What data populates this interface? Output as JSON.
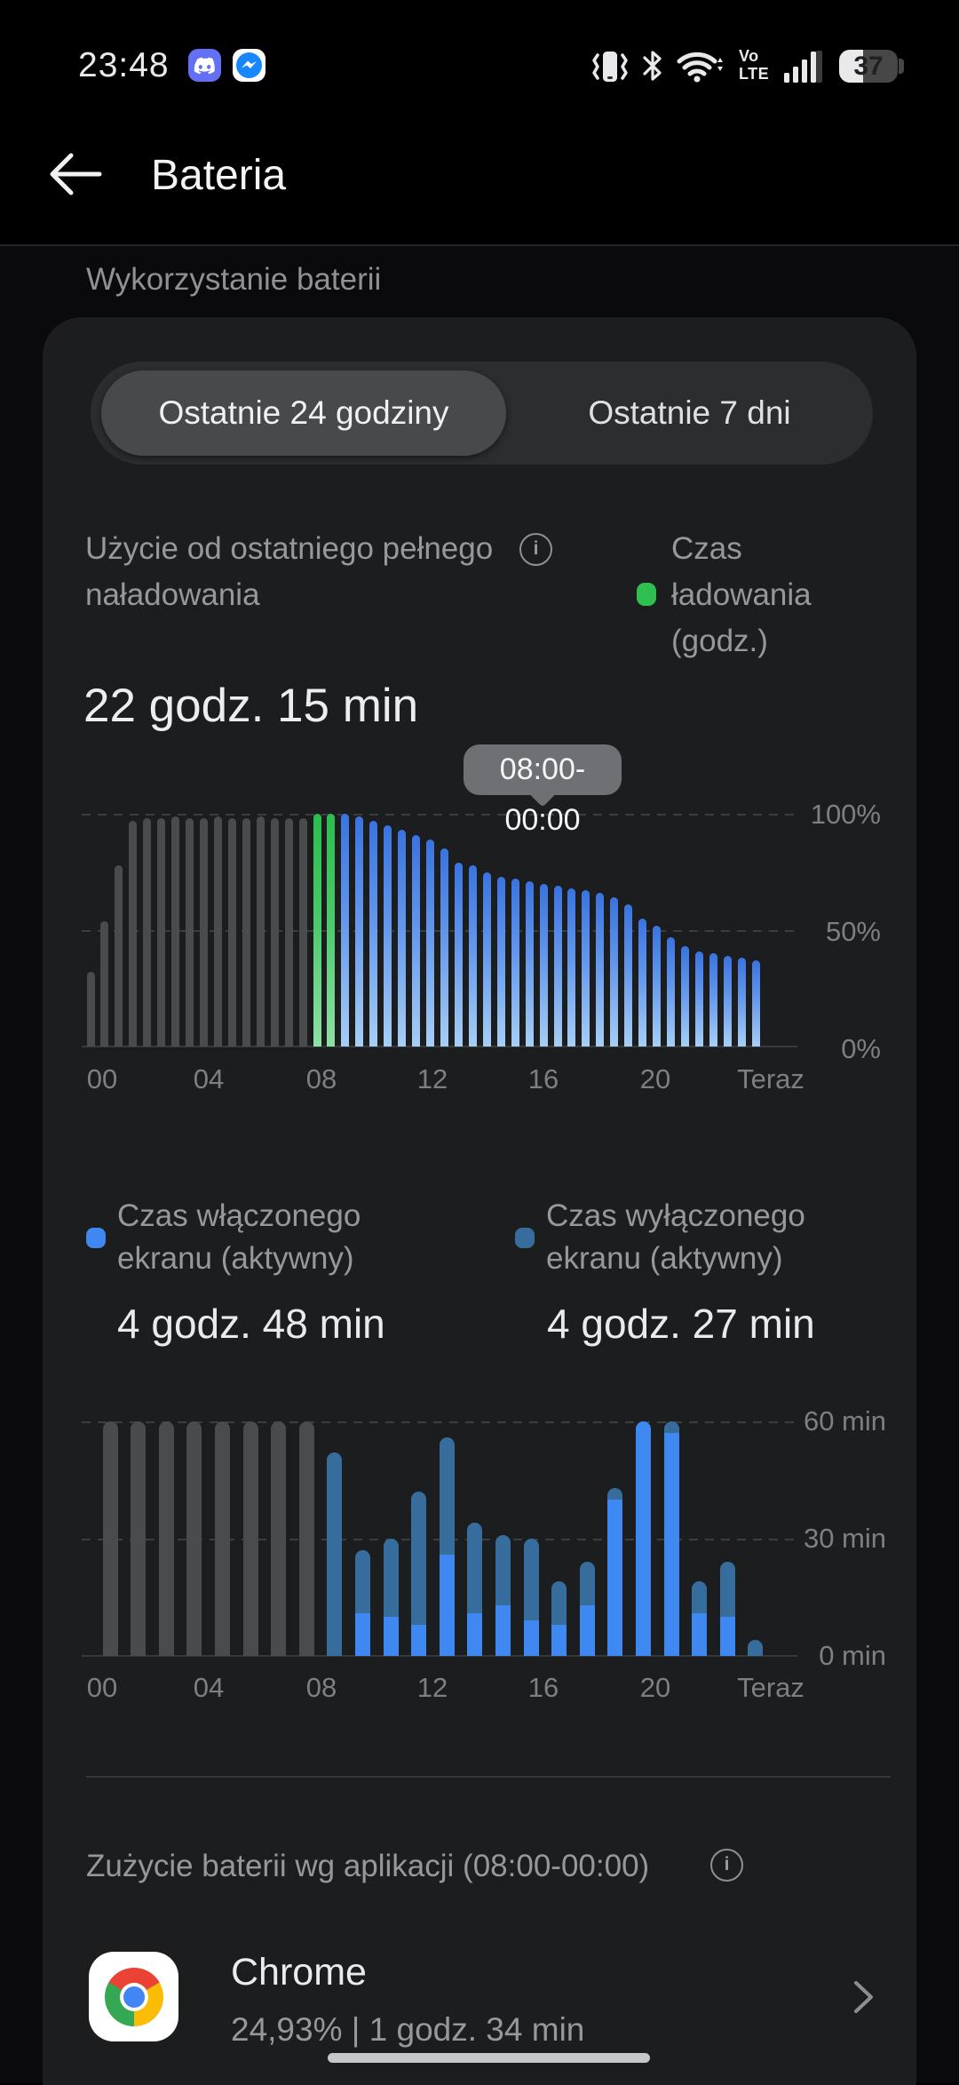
{
  "status_bar": {
    "time": "23:48",
    "battery_level": "37",
    "volte_top": "Vo",
    "volte_bottom": "LTE"
  },
  "header": {
    "title": "Bateria",
    "section": "Wykorzystanie baterii"
  },
  "tabs": [
    {
      "label": "Ostatnie 24 godziny",
      "selected": true
    },
    {
      "label": "Ostatnie 7 dni",
      "selected": false
    }
  ],
  "usage": {
    "label_line1": "Użycie od ostatniego pełnego",
    "label_line2": "naładowania",
    "value": "22 godz. 15 min"
  },
  "charge_legend": {
    "line1": "Czas",
    "line2": "ładowania",
    "line3": "(godz.)",
    "color": "#2fbf50"
  },
  "tooltip": "08:00-00:00",
  "screen_legend": [
    {
      "label_line1": "Czas włączonego",
      "label_line2": "ekranu (aktywny)",
      "value": "4 godz. 48 min",
      "color": "#3f87f1"
    },
    {
      "label_line1": "Czas wyłączonego",
      "label_line2": "ekranu (aktywny)",
      "value": "4 godz. 27 min",
      "color": "#366d9c"
    }
  ],
  "apps_section": {
    "title": "Zużycie baterii wg aplikacji (08:00-00:00)"
  },
  "apps": [
    {
      "name": "Chrome",
      "detail": "24,93%  |  1 godz. 34 min"
    }
  ],
  "chart_data": [
    {
      "type": "bar",
      "name": "battery-level-last-24h",
      "unit": "%",
      "ylim": [
        0,
        100
      ],
      "y_ticks": [
        "100%",
        "50%",
        "0%"
      ],
      "x_labels": [
        "00",
        "04",
        "08",
        "12",
        "16",
        "20",
        "Teraz"
      ],
      "annotation": "08:00-00:00",
      "legend_green": "Czas ładowania (godz.)",
      "colors": {
        "gray": "#4a4b4d",
        "green": "#2fbf50",
        "blue": "#3f7ce5"
      },
      "bars": [
        {
          "v": 32,
          "c": "gray"
        },
        {
          "v": 54,
          "c": "gray"
        },
        {
          "v": 78,
          "c": "gray"
        },
        {
          "v": 97,
          "c": "gray"
        },
        {
          "v": 98,
          "c": "gray"
        },
        {
          "v": 98,
          "c": "gray"
        },
        {
          "v": 99,
          "c": "gray"
        },
        {
          "v": 98,
          "c": "gray"
        },
        {
          "v": 98,
          "c": "gray"
        },
        {
          "v": 99,
          "c": "gray"
        },
        {
          "v": 98,
          "c": "gray"
        },
        {
          "v": 98,
          "c": "gray"
        },
        {
          "v": 99,
          "c": "gray"
        },
        {
          "v": 98,
          "c": "gray"
        },
        {
          "v": 98,
          "c": "gray"
        },
        {
          "v": 98,
          "c": "gray"
        },
        {
          "v": 100,
          "c": "green"
        },
        {
          "v": 100,
          "c": "green"
        },
        {
          "v": 100,
          "c": "blue"
        },
        {
          "v": 99,
          "c": "blue"
        },
        {
          "v": 97,
          "c": "blue"
        },
        {
          "v": 95,
          "c": "blue"
        },
        {
          "v": 93,
          "c": "blue"
        },
        {
          "v": 91,
          "c": "blue"
        },
        {
          "v": 89,
          "c": "blue"
        },
        {
          "v": 85,
          "c": "blue"
        },
        {
          "v": 79,
          "c": "blue"
        },
        {
          "v": 78,
          "c": "blue"
        },
        {
          "v": 75,
          "c": "blue"
        },
        {
          "v": 73,
          "c": "blue"
        },
        {
          "v": 72,
          "c": "blue"
        },
        {
          "v": 71,
          "c": "blue"
        },
        {
          "v": 70,
          "c": "blue"
        },
        {
          "v": 69,
          "c": "blue"
        },
        {
          "v": 68,
          "c": "blue"
        },
        {
          "v": 67,
          "c": "blue"
        },
        {
          "v": 66,
          "c": "blue"
        },
        {
          "v": 64,
          "c": "blue"
        },
        {
          "v": 61,
          "c": "blue"
        },
        {
          "v": 55,
          "c": "blue"
        },
        {
          "v": 52,
          "c": "blue"
        },
        {
          "v": 47,
          "c": "blue"
        },
        {
          "v": 43,
          "c": "blue"
        },
        {
          "v": 41,
          "c": "blue"
        },
        {
          "v": 40,
          "c": "blue"
        },
        {
          "v": 39,
          "c": "blue"
        },
        {
          "v": 38,
          "c": "blue"
        },
        {
          "v": 37,
          "c": "blue"
        }
      ]
    },
    {
      "type": "stacked-bar",
      "name": "screen-time-per-hour",
      "unit": "min",
      "ylim": [
        0,
        60
      ],
      "y_ticks": [
        "60 min",
        "30 min",
        "0 min"
      ],
      "x_labels": [
        "00",
        "04",
        "08",
        "12",
        "16",
        "20",
        "Teraz"
      ],
      "series": [
        {
          "key": "on",
          "label": "Czas włączonego ekranu (aktywny)",
          "color": "#3f87f1"
        },
        {
          "key": "off",
          "label": "Czas wyłączonego ekranu (aktywny)",
          "color": "#366d9c"
        }
      ],
      "bars": [
        {
          "c": "gray",
          "on": 0,
          "off": 60
        },
        {
          "c": "gray",
          "on": 0,
          "off": 60
        },
        {
          "c": "gray",
          "on": 0,
          "off": 60
        },
        {
          "c": "gray",
          "on": 0,
          "off": 60
        },
        {
          "c": "gray",
          "on": 0,
          "off": 60
        },
        {
          "c": "gray",
          "on": 0,
          "off": 60
        },
        {
          "c": "gray",
          "on": 0,
          "off": 60
        },
        {
          "c": "gray",
          "on": 0,
          "off": 60
        },
        {
          "c": "blue",
          "on": 0,
          "off": 52
        },
        {
          "c": "blue",
          "on": 11,
          "off": 16
        },
        {
          "c": "blue",
          "on": 10,
          "off": 20
        },
        {
          "c": "blue",
          "on": 8,
          "off": 34
        },
        {
          "c": "blue",
          "on": 26,
          "off": 30
        },
        {
          "c": "blue",
          "on": 11,
          "off": 23
        },
        {
          "c": "blue",
          "on": 13,
          "off": 18
        },
        {
          "c": "blue",
          "on": 9,
          "off": 21
        },
        {
          "c": "blue",
          "on": 8,
          "off": 11
        },
        {
          "c": "blue",
          "on": 13,
          "off": 11
        },
        {
          "c": "blue",
          "on": 40,
          "off": 3
        },
        {
          "c": "blue",
          "on": 60,
          "off": 0
        },
        {
          "c": "blue",
          "on": 57,
          "off": 3
        },
        {
          "c": "blue",
          "on": 11,
          "off": 8
        },
        {
          "c": "blue",
          "on": 10,
          "off": 14
        },
        {
          "c": "blue",
          "on": 0,
          "off": 4
        }
      ]
    }
  ]
}
